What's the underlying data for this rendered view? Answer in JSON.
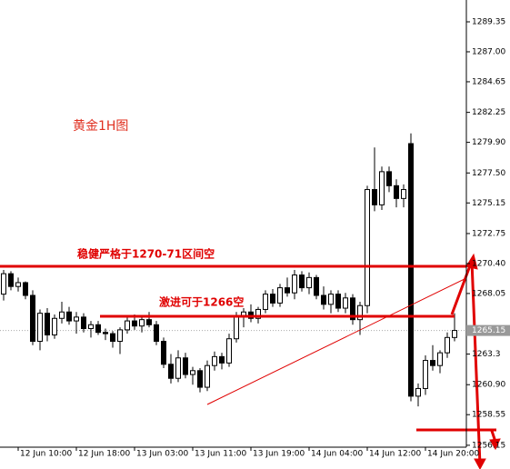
{
  "chart_data": {
    "type": "candlestick",
    "title": "黄金1H图",
    "annotations": [
      "稳健严格于1270-71区间空",
      "激进可于1266空"
    ],
    "current_price": 1265.15,
    "up_color": "#ffffff",
    "down_color": "#000000",
    "ylim": [
      1256.0,
      1291.06
    ],
    "yticks": [
      1256.15,
      1258.55,
      {
        "value": 1260.9,
        "label": "1260.90"
      },
      1263.3,
      1268.05,
      {
        "value": 1270.4,
        "label": "1270.40"
      },
      1272.75,
      1275.15,
      {
        "value": 1277.5,
        "label": "1277.50"
      },
      {
        "value": 1279.9,
        "label": "1279.90"
      },
      1282.25,
      1284.65,
      {
        "value": 1287,
        "label": "1287.00"
      },
      1289.35
    ],
    "categories": [
      null,
      null,
      "12 Jun 10:00",
      null,
      null,
      null,
      null,
      null,
      null,
      null,
      "12 Jun 18:00",
      null,
      null,
      null,
      null,
      null,
      null,
      null,
      "13 Jun 03:00",
      null,
      null,
      null,
      null,
      null,
      null,
      null,
      "13 Jun 11:00",
      null,
      null,
      null,
      null,
      null,
      null,
      null,
      "13 Jun 19:00",
      null,
      null,
      null,
      null,
      null,
      null,
      null,
      "14 Jun 04:00",
      null,
      null,
      null,
      null,
      null,
      null,
      null,
      "14 Jun 12:00",
      null,
      null,
      null,
      null,
      null,
      null,
      null,
      "14 Jun 20:00",
      null,
      null,
      null,
      null
    ],
    "ohlc": [
      [
        1268.0,
        1269.9,
        1267.5,
        1269.6
      ],
      [
        1269.6,
        1269.8,
        1268.3,
        1268.6
      ],
      [
        1268.6,
        1269.3,
        1268.2,
        1268.9
      ],
      [
        1268.9,
        1269.0,
        1267.6,
        1267.9
      ],
      [
        1267.9,
        1268.3,
        1264.0,
        1264.3
      ],
      [
        1264.3,
        1266.8,
        1263.6,
        1266.5
      ],
      [
        1266.5,
        1266.9,
        1264.3,
        1264.8
      ],
      [
        1264.8,
        1266.4,
        1264.5,
        1266.1
      ],
      [
        1266.1,
        1267.4,
        1265.7,
        1266.6
      ],
      [
        1266.6,
        1267.0,
        1265.6,
        1265.9
      ],
      [
        1265.9,
        1266.6,
        1264.9,
        1266.2
      ],
      [
        1266.2,
        1266.5,
        1265.0,
        1265.3
      ],
      [
        1265.3,
        1265.9,
        1264.6,
        1265.6
      ],
      [
        1265.6,
        1265.9,
        1264.8,
        1265.0
      ],
      [
        1265.0,
        1265.3,
        1264.4,
        1264.9
      ],
      [
        1264.9,
        1265.1,
        1263.8,
        1264.3
      ],
      [
        1264.3,
        1265.4,
        1263.3,
        1265.2
      ],
      [
        1265.2,
        1266.2,
        1264.9,
        1265.9
      ],
      [
        1265.9,
        1266.4,
        1265.2,
        1265.5
      ],
      [
        1265.5,
        1266.3,
        1265.0,
        1266.0
      ],
      [
        1266.0,
        1266.6,
        1265.4,
        1265.6
      ],
      [
        1265.6,
        1265.9,
        1264.0,
        1264.3
      ],
      [
        1264.3,
        1264.6,
        1262.2,
        1262.5
      ],
      [
        1262.5,
        1263.3,
        1261.0,
        1261.4
      ],
      [
        1261.4,
        1263.6,
        1261.1,
        1263.0
      ],
      [
        1263.0,
        1263.4,
        1261.4,
        1261.7
      ],
      [
        1261.7,
        1262.3,
        1260.9,
        1262.0
      ],
      [
        1262.0,
        1262.2,
        1260.3,
        1260.7
      ],
      [
        1260.7,
        1262.8,
        1260.4,
        1262.4
      ],
      [
        1262.4,
        1263.5,
        1262.0,
        1263.1
      ],
      [
        1263.1,
        1263.4,
        1262.1,
        1262.6
      ],
      [
        1262.6,
        1264.9,
        1262.3,
        1264.5
      ],
      [
        1264.5,
        1266.6,
        1264.2,
        1266.2
      ],
      [
        1266.2,
        1266.9,
        1265.4,
        1266.6
      ],
      [
        1266.6,
        1267.2,
        1265.8,
        1266.1
      ],
      [
        1266.1,
        1267.0,
        1265.7,
        1266.8
      ],
      [
        1266.8,
        1268.3,
        1266.5,
        1268.0
      ],
      [
        1268.0,
        1268.4,
        1267.0,
        1267.3
      ],
      [
        1267.3,
        1268.8,
        1267.0,
        1268.5
      ],
      [
        1268.5,
        1269.3,
        1267.8,
        1268.1
      ],
      [
        1268.1,
        1269.9,
        1267.6,
        1269.5
      ],
      [
        1269.5,
        1269.8,
        1268.2,
        1268.5
      ],
      [
        1268.5,
        1269.7,
        1268.0,
        1269.3
      ],
      [
        1269.3,
        1269.5,
        1267.6,
        1267.9
      ],
      [
        1267.9,
        1268.6,
        1266.8,
        1267.2
      ],
      [
        1267.2,
        1268.3,
        1266.5,
        1268.0
      ],
      [
        1268.0,
        1268.3,
        1266.6,
        1266.9
      ],
      [
        1266.9,
        1268.1,
        1266.5,
        1267.7
      ],
      [
        1267.7,
        1268.0,
        1265.6,
        1266.0
      ],
      [
        1266.0,
        1267.4,
        1264.8,
        1267.1
      ],
      [
        1267.1,
        1276.5,
        1266.5,
        1276.2
      ],
      [
        1276.2,
        1279.5,
        1274.5,
        1275.0
      ],
      [
        1275.0,
        1278.0,
        1274.6,
        1277.6
      ],
      [
        1277.6,
        1278.0,
        1276.0,
        1276.5
      ],
      [
        1276.5,
        1277.0,
        1274.8,
        1275.5
      ],
      [
        1275.5,
        1276.6,
        1274.8,
        1276.2
      ],
      [
        1279.8,
        1280.6,
        1259.6,
        1260.0
      ],
      [
        1260.0,
        1261.0,
        1259.2,
        1260.6
      ],
      [
        1260.6,
        1263.2,
        1260.1,
        1262.8
      ],
      [
        1262.8,
        1264.0,
        1262.0,
        1262.4
      ],
      [
        1262.4,
        1263.6,
        1261.8,
        1263.4
      ],
      [
        1263.4,
        1265.0,
        1263.0,
        1264.6
      ],
      [
        1264.6,
        1266.5,
        1264.3,
        1265.15
      ]
    ]
  }
}
